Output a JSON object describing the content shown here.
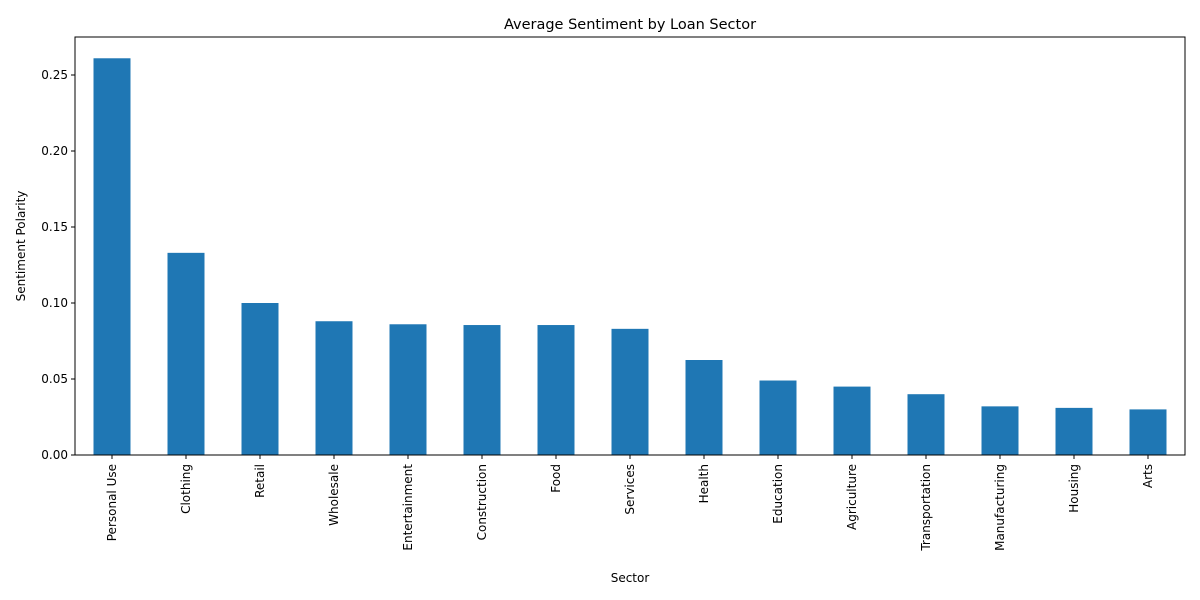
{
  "chart_data": {
    "type": "bar",
    "title": "Average Sentiment by Loan Sector",
    "xlabel": "Sector",
    "ylabel": "Sentiment Polarity",
    "categories": [
      "Personal Use",
      "Clothing",
      "Retail",
      "Wholesale",
      "Entertainment",
      "Construction",
      "Food",
      "Services",
      "Health",
      "Education",
      "Agriculture",
      "Transportation",
      "Manufacturing",
      "Housing",
      "Arts"
    ],
    "values": [
      0.261,
      0.133,
      0.1,
      0.088,
      0.086,
      0.0855,
      0.0855,
      0.083,
      0.0625,
      0.049,
      0.045,
      0.04,
      0.032,
      0.031,
      0.03
    ],
    "ylim": [
      0,
      0.275
    ],
    "yticks": [
      0.0,
      0.05,
      0.1,
      0.15,
      0.2,
      0.25
    ],
    "ytick_labels": [
      "0.00",
      "0.05",
      "0.10",
      "0.15",
      "0.20",
      "0.25"
    ],
    "bar_color": "#1f77b4",
    "grid": false,
    "legend": "none"
  }
}
